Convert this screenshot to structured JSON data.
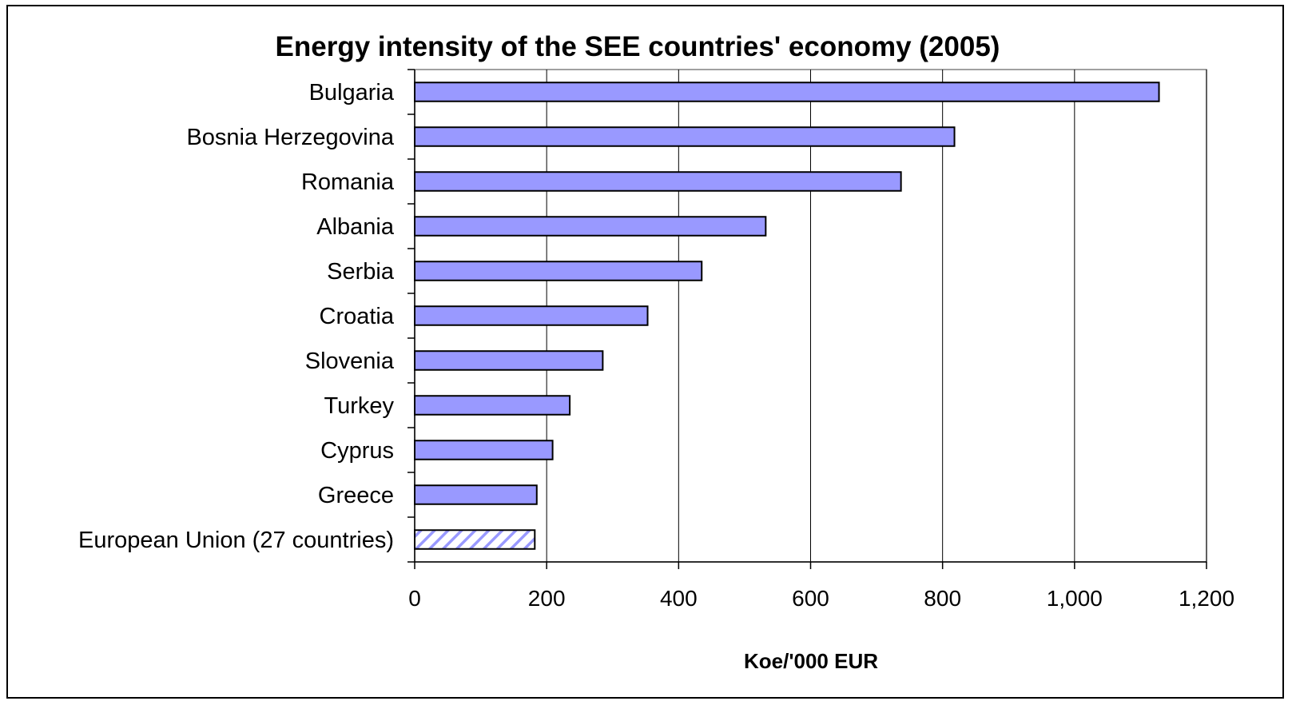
{
  "chart_data": {
    "type": "bar",
    "orientation": "horizontal",
    "title": "Energy intensity of the SEE countries' economy (2005)",
    "xlabel": "Koe/'000 EUR",
    "ylabel": "",
    "categories": [
      "Bulgaria",
      "Bosnia Herzegovina",
      "Romania",
      "Albania",
      "Serbia",
      "Croatia",
      "Slovenia",
      "Turkey",
      "Cyprus",
      "Greece",
      "European Union (27 countries)"
    ],
    "values": [
      1128,
      818,
      737,
      532,
      435,
      353,
      285,
      235,
      209,
      185,
      182
    ],
    "highlight": {
      "category": "European Union (27 countries)",
      "pattern": "diagonal-hatch"
    },
    "xlim": [
      0,
      1200
    ],
    "xticks": [
      0,
      200,
      400,
      600,
      800,
      1000,
      1200
    ],
    "xtick_labels": [
      "0",
      "200",
      "400",
      "600",
      "800",
      "1,000",
      "1,200"
    ],
    "grid": "vertical",
    "legend": "none",
    "colors": {
      "bar": "#9999ff",
      "bar_border": "#000000",
      "grid": "#000000"
    }
  }
}
